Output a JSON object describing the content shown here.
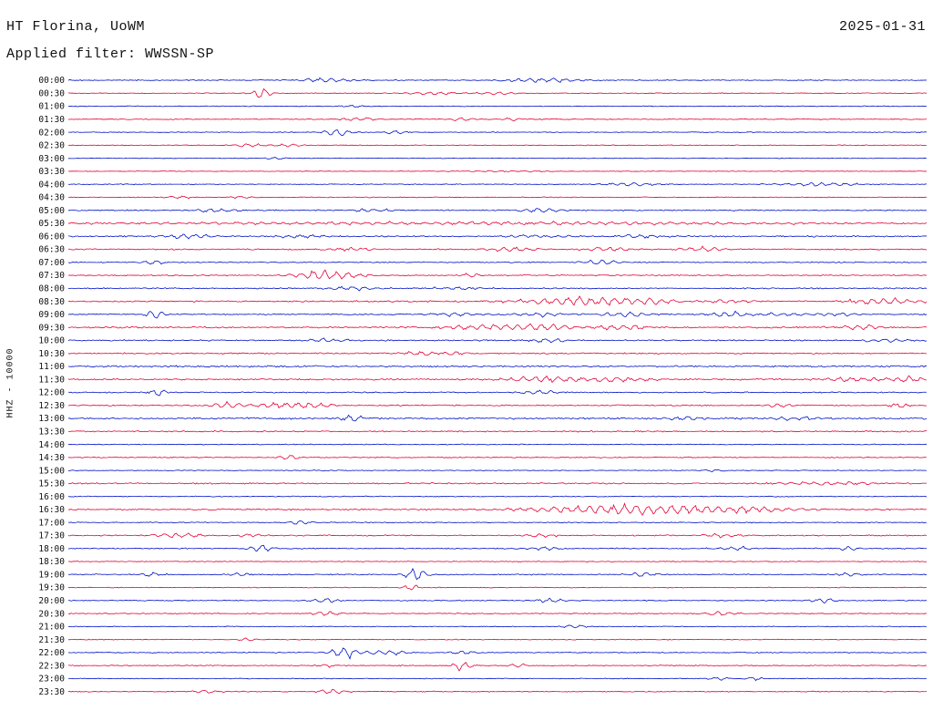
{
  "header": {
    "station": "HT Florina, UoWM",
    "date": "2025-01-31",
    "filter_label": "Applied filter: WWSSN-SP"
  },
  "y_axis_label": "HHZ - 10000",
  "chart_data": {
    "type": "line",
    "subtype": "helicorder-seismogram",
    "title": "HT Florina, UoWM",
    "date": "2025-01-31",
    "filter": "WWSSN-SP",
    "channel": "HHZ",
    "scale": "10000",
    "minutes_per_row": 30,
    "trace_colors": [
      "#0010c8",
      "#e30238"
    ],
    "row_labels": [
      "00:00",
      "00:30",
      "01:00",
      "01:30",
      "02:00",
      "02:30",
      "03:00",
      "03:30",
      "04:00",
      "04:30",
      "05:00",
      "05:30",
      "06:00",
      "06:30",
      "07:00",
      "07:30",
      "08:00",
      "08:30",
      "09:00",
      "09:30",
      "10:00",
      "10:30",
      "11:00",
      "11:30",
      "12:00",
      "12:30",
      "13:00",
      "13:30",
      "14:00",
      "14:30",
      "15:00",
      "15:30",
      "16:00",
      "16:30",
      "17:00",
      "17:30",
      "18:00",
      "18:30",
      "19:00",
      "19:30",
      "20:00",
      "20:30",
      "21:00",
      "21:30",
      "22:00",
      "22:30",
      "23:00",
      "23:30"
    ],
    "base_noise": [
      0.7,
      0.6,
      0.6,
      0.7,
      0.6,
      0.6,
      0.5,
      0.5,
      0.6,
      0.6,
      0.9,
      1.0,
      1.0,
      1.0,
      0.8,
      0.8,
      0.9,
      1.1,
      1.0,
      1.1,
      1.0,
      1.0,
      1.2,
      1.1,
      0.9,
      1.0,
      1.3,
      1.0,
      0.7,
      0.7,
      0.6,
      1.0,
      0.7,
      1.0,
      0.7,
      0.9,
      0.8,
      0.6,
      0.8,
      0.6,
      0.7,
      0.7,
      0.6,
      0.6,
      0.7,
      0.7,
      0.6,
      0.7
    ],
    "events_format": "[row_index, x_fraction_of_row, amplitude_px, width_fraction]",
    "events": [
      [
        0,
        0.3,
        2.5,
        0.02
      ],
      [
        0,
        0.55,
        2.5,
        0.03
      ],
      [
        1,
        0.225,
        6,
        0.008
      ],
      [
        1,
        0.42,
        1.8,
        0.02
      ],
      [
        1,
        0.5,
        1.5,
        0.02
      ],
      [
        2,
        0.33,
        1.2,
        0.01
      ],
      [
        3,
        0.335,
        2.2,
        0.015
      ],
      [
        3,
        0.46,
        1.8,
        0.01
      ],
      [
        3,
        0.52,
        1.6,
        0.01
      ],
      [
        4,
        0.315,
        5,
        0.01
      ],
      [
        4,
        0.38,
        2.5,
        0.008
      ],
      [
        5,
        0.21,
        2.2,
        0.012
      ],
      [
        5,
        0.255,
        2.0,
        0.01
      ],
      [
        6,
        0.24,
        1.5,
        0.008
      ],
      [
        7,
        0.5,
        0.8,
        0.05
      ],
      [
        8,
        0.655,
        2.2,
        0.02
      ],
      [
        8,
        0.87,
        2.0,
        0.03
      ],
      [
        9,
        0.13,
        1.5,
        0.01
      ],
      [
        9,
        0.2,
        1.3,
        0.01
      ],
      [
        10,
        0.17,
        2.0,
        0.02
      ],
      [
        10,
        0.35,
        1.8,
        0.02
      ],
      [
        10,
        0.55,
        1.8,
        0.02
      ],
      [
        11,
        0.3,
        1.2,
        0.2
      ],
      [
        11,
        0.65,
        1.2,
        0.15
      ],
      [
        12,
        0.14,
        2.5,
        0.02
      ],
      [
        12,
        0.27,
        2.2,
        0.02
      ],
      [
        12,
        0.55,
        2.0,
        0.03
      ],
      [
        12,
        0.67,
        2.2,
        0.02
      ],
      [
        13,
        0.33,
        2.2,
        0.02
      ],
      [
        13,
        0.52,
        2.5,
        0.02
      ],
      [
        13,
        0.63,
        2.2,
        0.02
      ],
      [
        13,
        0.74,
        2.5,
        0.02
      ],
      [
        14,
        0.1,
        3.5,
        0.008
      ],
      [
        14,
        0.62,
        2.5,
        0.015
      ],
      [
        15,
        0.3,
        6,
        0.025
      ],
      [
        15,
        0.47,
        2.5,
        0.008
      ],
      [
        16,
        0.33,
        2.0,
        0.02
      ],
      [
        16,
        0.45,
        1.8,
        0.02
      ],
      [
        17,
        0.57,
        3.0,
        0.04
      ],
      [
        17,
        0.63,
        3.5,
        0.03
      ],
      [
        17,
        0.68,
        3.0,
        0.02
      ],
      [
        17,
        0.77,
        2.0,
        0.02
      ],
      [
        17,
        0.95,
        3.5,
        0.03
      ],
      [
        18,
        0.1,
        6,
        0.008
      ],
      [
        18,
        0.45,
        2.0,
        0.02
      ],
      [
        18,
        0.55,
        2.2,
        0.02
      ],
      [
        18,
        0.65,
        2.8,
        0.02
      ],
      [
        18,
        0.77,
        2.2,
        0.02
      ],
      [
        18,
        0.83,
        2.0,
        0.02
      ],
      [
        18,
        0.9,
        2.0,
        0.02
      ],
      [
        19,
        0.48,
        2.5,
        0.03
      ],
      [
        19,
        0.55,
        3.0,
        0.03
      ],
      [
        19,
        0.64,
        3.5,
        0.02
      ],
      [
        19,
        0.92,
        2.8,
        0.02
      ],
      [
        20,
        0.3,
        2.2,
        0.015
      ],
      [
        20,
        0.56,
        2.5,
        0.015
      ],
      [
        20,
        0.95,
        2.0,
        0.02
      ],
      [
        21,
        0.41,
        2.5,
        0.015
      ],
      [
        21,
        0.45,
        2.0,
        0.01
      ],
      [
        23,
        0.55,
        3.0,
        0.03
      ],
      [
        23,
        0.63,
        3.0,
        0.03
      ],
      [
        23,
        0.92,
        2.5,
        0.03
      ],
      [
        23,
        0.98,
        2.5,
        0.01
      ],
      [
        24,
        0.105,
        3.5,
        0.008
      ],
      [
        24,
        0.55,
        2.5,
        0.015
      ],
      [
        25,
        0.19,
        3.0,
        0.015
      ],
      [
        25,
        0.24,
        2.8,
        0.015
      ],
      [
        25,
        0.28,
        3.0,
        0.02
      ],
      [
        25,
        0.83,
        2.0,
        0.01
      ],
      [
        25,
        0.97,
        2.5,
        0.01
      ],
      [
        26,
        0.33,
        4.5,
        0.008
      ],
      [
        26,
        0.72,
        2.0,
        0.02
      ],
      [
        26,
        0.85,
        2.0,
        0.02
      ],
      [
        29,
        0.26,
        2.5,
        0.01
      ],
      [
        30,
        0.75,
        1.5,
        0.01
      ],
      [
        31,
        0.88,
        2.0,
        0.04
      ],
      [
        33,
        0.58,
        3.0,
        0.05
      ],
      [
        33,
        0.65,
        4.0,
        0.03
      ],
      [
        33,
        0.72,
        3.0,
        0.05
      ],
      [
        33,
        0.8,
        2.5,
        0.04
      ],
      [
        34,
        0.27,
        2.5,
        0.01
      ],
      [
        35,
        0.13,
        2.8,
        0.02
      ],
      [
        35,
        0.21,
        2.2,
        0.01
      ],
      [
        35,
        0.55,
        2.0,
        0.015
      ],
      [
        35,
        0.76,
        2.2,
        0.015
      ],
      [
        36,
        0.225,
        4.0,
        0.01
      ],
      [
        36,
        0.55,
        2.0,
        0.015
      ],
      [
        36,
        0.78,
        2.2,
        0.015
      ],
      [
        36,
        0.91,
        2.0,
        0.01
      ],
      [
        38,
        0.1,
        3.0,
        0.008
      ],
      [
        38,
        0.2,
        2.2,
        0.01
      ],
      [
        38,
        0.405,
        7,
        0.01
      ],
      [
        38,
        0.67,
        2.2,
        0.015
      ],
      [
        38,
        0.91,
        2.0,
        0.01
      ],
      [
        39,
        0.4,
        3.5,
        0.008
      ],
      [
        40,
        0.3,
        2.2,
        0.012
      ],
      [
        40,
        0.56,
        2.2,
        0.012
      ],
      [
        40,
        0.88,
        2.5,
        0.012
      ],
      [
        41,
        0.3,
        2.5,
        0.012
      ],
      [
        41,
        0.76,
        2.5,
        0.012
      ],
      [
        42,
        0.59,
        1.8,
        0.01
      ],
      [
        43,
        0.21,
        1.8,
        0.01
      ],
      [
        44,
        0.32,
        6.5,
        0.01
      ],
      [
        44,
        0.37,
        2.5,
        0.02
      ],
      [
        44,
        0.46,
        2.0,
        0.01
      ],
      [
        45,
        0.3,
        2.0,
        0.008
      ],
      [
        45,
        0.46,
        5.5,
        0.008
      ],
      [
        45,
        0.52,
        2.2,
        0.01
      ],
      [
        46,
        0.76,
        2.5,
        0.008
      ],
      [
        46,
        0.8,
        2.5,
        0.008
      ],
      [
        47,
        0.16,
        2.2,
        0.012
      ],
      [
        47,
        0.31,
        2.5,
        0.012
      ]
    ],
    "layout": {
      "x_range_minutes": [
        0,
        30
      ],
      "rows": 48,
      "grid": false,
      "legend": "none"
    }
  }
}
